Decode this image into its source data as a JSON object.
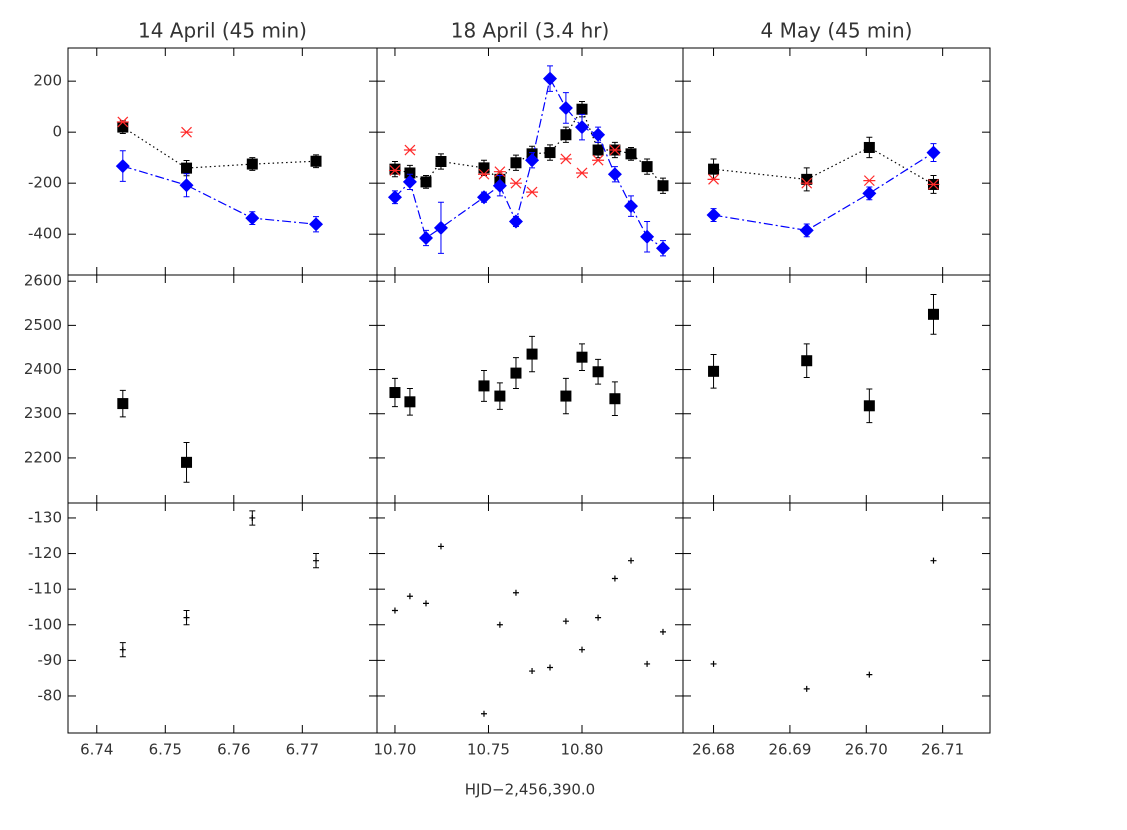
{
  "chart_data": [
    {
      "type": "scatter",
      "title": "14 April (45 min)",
      "x": [
        6.7438,
        6.7531,
        6.7627,
        6.772
      ],
      "xlim": [
        6.7358,
        6.7809
      ],
      "ylim": [
        -560,
        330
      ],
      "xticks": [
        6.74,
        6.75,
        6.76,
        6.77
      ],
      "yticks": [
        -400,
        -200,
        0,
        200
      ],
      "xtick_labels": false,
      "ytick_labels": true,
      "series": [
        {
          "color": "#000000",
          "marker": "square",
          "line": "dotted",
          "values": [
            20,
            -141,
            -125,
            -114
          ],
          "errors": [
            25,
            30,
            25,
            25
          ]
        },
        {
          "color": "#0000ff",
          "marker": "diamond",
          "line": "dashdot",
          "values": [
            -133,
            -208,
            -337,
            -361
          ],
          "errors": [
            60,
            45,
            25,
            30
          ]
        },
        {
          "color": "#ff2a2a",
          "marker": "asterisk",
          "line": "none",
          "values": [
            40,
            0,
            null,
            null
          ]
        }
      ]
    },
    {
      "type": "scatter",
      "title": "18 April (3.4 hr)",
      "x": [
        10.7,
        10.708,
        10.7166,
        10.7246,
        10.7476,
        10.7561,
        10.7647,
        10.7733,
        10.7829,
        10.7914,
        10.8,
        10.8086,
        10.8176,
        10.8262,
        10.8348,
        10.8433
      ],
      "xlim": [
        10.6904,
        10.854
      ],
      "ylim": [
        -560,
        330
      ],
      "xticks": [
        10.7,
        10.75,
        10.8
      ],
      "yticks": [
        -400,
        -200,
        0,
        200
      ],
      "xtick_labels": false,
      "ytick_labels": false,
      "series": [
        {
          "color": "#000000",
          "marker": "square",
          "line": "dotted",
          "values": [
            -145,
            -160,
            -195,
            -115,
            -140,
            -185,
            -120,
            -85,
            -80,
            -10,
            90,
            -70,
            -70,
            -85,
            -135,
            -210
          ],
          "errors": [
            30,
            30,
            25,
            30,
            30,
            30,
            30,
            30,
            30,
            30,
            30,
            30,
            30,
            25,
            30,
            30
          ]
        },
        {
          "color": "#0000ff",
          "marker": "diamond",
          "line": "dashdot",
          "values": [
            -255,
            -195,
            -415,
            -375,
            -255,
            -210,
            -350,
            -110,
            210,
            95,
            20,
            -10,
            -165,
            -290,
            -410,
            -455
          ],
          "errors": [
            25,
            30,
            30,
            100,
            20,
            40,
            20,
            30,
            50,
            60,
            50,
            30,
            30,
            40,
            60,
            30
          ]
        },
        {
          "color": "#ff2a2a",
          "marker": "asterisk",
          "line": "none",
          "values": [
            -150,
            -70,
            null,
            null,
            -165,
            -155,
            -200,
            -235,
            null,
            -105,
            -160,
            -110,
            -70,
            null,
            null,
            null
          ]
        }
      ]
    },
    {
      "type": "scatter",
      "title": "4 May (45 min)",
      "x": [
        26.68,
        26.6922,
        26.7004,
        26.7088
      ],
      "xlim": [
        26.676,
        26.7162
      ],
      "ylim": [
        -560,
        330
      ],
      "xticks": [
        26.68,
        26.69,
        26.7,
        26.71
      ],
      "yticks": [
        -400,
        -200,
        0,
        200
      ],
      "xtick_labels": false,
      "ytick_labels": false,
      "series": [
        {
          "color": "#000000",
          "marker": "square",
          "line": "dotted",
          "values": [
            -145,
            -185,
            -60,
            -205
          ],
          "errors": [
            40,
            45,
            40,
            35
          ]
        },
        {
          "color": "#0000ff",
          "marker": "diamond",
          "line": "dashdot",
          "values": [
            -325,
            -385,
            -240,
            -80
          ],
          "errors": [
            25,
            25,
            25,
            35
          ]
        },
        {
          "color": "#ff2a2a",
          "marker": "asterisk",
          "line": "none",
          "values": [
            -185,
            -200,
            -190,
            -205
          ]
        }
      ]
    },
    {
      "type": "scatter",
      "x": [
        6.7438,
        6.7531
      ],
      "xlim": [
        6.7358,
        6.7809
      ],
      "ylim": [
        2098,
        2614
      ],
      "xticks": [
        6.74,
        6.75,
        6.76,
        6.77
      ],
      "yticks": [
        2200,
        2300,
        2400,
        2500,
        2600
      ],
      "xtick_labels": false,
      "ytick_labels": true,
      "series": [
        {
          "color": "#000000",
          "marker": "square",
          "line": "none",
          "values": [
            2323,
            2190
          ],
          "errors": [
            30,
            45
          ]
        }
      ]
    },
    {
      "type": "scatter",
      "x": [
        10.7,
        10.708,
        10.7476,
        10.7561,
        10.7647,
        10.7733,
        10.7914,
        10.8,
        10.8086,
        10.8176
      ],
      "xlim": [
        10.6904,
        10.854
      ],
      "ylim": [
        2098,
        2614
      ],
      "xticks": [
        10.7,
        10.75,
        10.8
      ],
      "yticks": [
        2200,
        2300,
        2400,
        2500,
        2600
      ],
      "xtick_labels": false,
      "ytick_labels": false,
      "series": [
        {
          "color": "#000000",
          "marker": "square",
          "line": "none",
          "values": [
            2348,
            2327,
            2363,
            2340,
            2392,
            2435,
            2340,
            2428,
            2395,
            2334
          ],
          "errors": [
            32,
            30,
            35,
            30,
            35,
            40,
            40,
            30,
            28,
            38
          ]
        }
      ]
    },
    {
      "type": "scatter",
      "x": [
        26.68,
        26.6922,
        26.7004,
        26.7088
      ],
      "xlim": [
        26.676,
        26.7162
      ],
      "ylim": [
        2098,
        2614
      ],
      "xticks": [
        26.68,
        26.69,
        26.7,
        26.71
      ],
      "yticks": [
        2200,
        2300,
        2400,
        2500,
        2600
      ],
      "xtick_labels": false,
      "ytick_labels": false,
      "series": [
        {
          "color": "#000000",
          "marker": "square",
          "line": "none",
          "values": [
            2396,
            2420,
            2318,
            2525
          ],
          "errors": [
            38,
            38,
            38,
            45
          ]
        }
      ]
    },
    {
      "type": "scatter",
      "x": [
        6.7438,
        6.7531,
        6.7627,
        6.772
      ],
      "xlim": [
        6.7358,
        6.7809
      ],
      "ylim": [
        -69.6,
        -134.2
      ],
      "xticks": [
        6.74,
        6.75,
        6.76,
        6.77
      ],
      "yticks": [
        -80,
        -90,
        -100,
        -110,
        -120,
        -130
      ],
      "xtick_labels": true,
      "ytick_labels": true,
      "series": [
        {
          "color": "#000000",
          "marker": "plus",
          "line": "none",
          "values": [
            -93,
            -102,
            -130,
            -118
          ],
          "errors": [
            2,
            2,
            2,
            2
          ]
        }
      ]
    },
    {
      "type": "scatter",
      "xlabel": "HJD−2,456,390.0",
      "x": [
        10.7,
        10.708,
        10.7166,
        10.7246,
        10.7476,
        10.7561,
        10.7647,
        10.7733,
        10.7829,
        10.7914,
        10.8,
        10.8086,
        10.8176,
        10.8262,
        10.8348,
        10.8433
      ],
      "xlim": [
        10.6904,
        10.854
      ],
      "ylim": [
        -69.6,
        -134.2
      ],
      "xticks": [
        {
          "value": 10.7,
          "label": "10.70"
        },
        10.75,
        {
          "value": 10.8,
          "label": "10.80"
        }
      ],
      "yticks": [
        -80,
        -90,
        -100,
        -110,
        -120,
        -130
      ],
      "xtick_labels": true,
      "ytick_labels": false,
      "series": [
        {
          "color": "#000000",
          "marker": "plus",
          "line": "none",
          "values": [
            -104,
            -108,
            -106,
            -122,
            -75,
            -100,
            -109,
            -87,
            -88,
            -101,
            -93,
            -102,
            -113,
            -118,
            -89,
            -98
          ]
        }
      ]
    },
    {
      "type": "scatter",
      "x": [
        26.68,
        26.6922,
        26.7004,
        26.7088
      ],
      "xlim": [
        26.676,
        26.7162
      ],
      "ylim": [
        -69.6,
        -134.2
      ],
      "xticks": [
        26.68,
        26.69,
        {
          "value": 26.7,
          "label": "26.70"
        },
        26.71
      ],
      "yticks": [
        -80,
        -90,
        -100,
        -110,
        -120,
        -130
      ],
      "xtick_labels": true,
      "ytick_labels": false,
      "series": [
        {
          "color": "#000000",
          "marker": "plus",
          "line": "none",
          "values": [
            -89,
            -82,
            -86,
            -118
          ]
        }
      ]
    }
  ]
}
